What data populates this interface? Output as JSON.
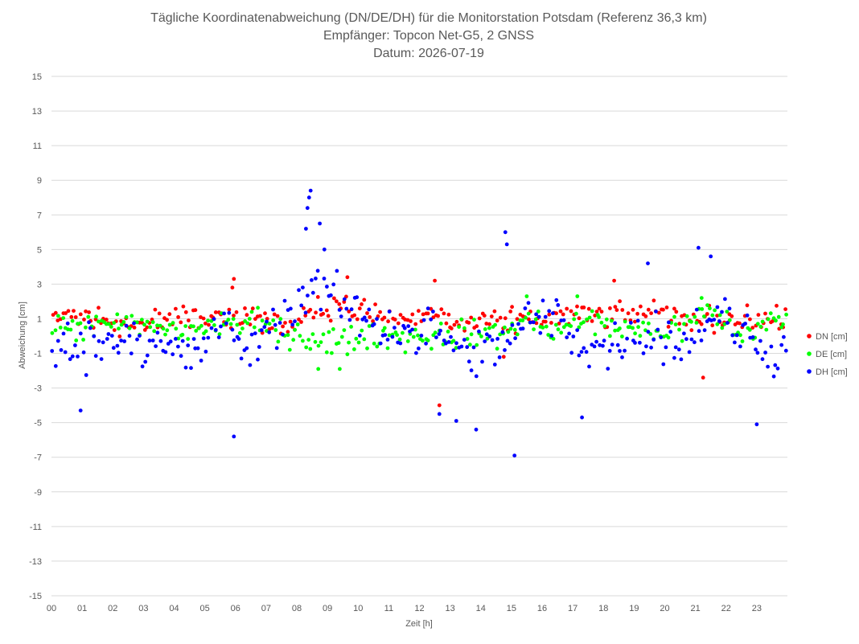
{
  "chart_data": {
    "type": "scatter",
    "title_lines": [
      "Tägliche Koordinatenabweichung (DN/DE/DH) für die Monitorstation Potsdam (Referenz 36,3 km)",
      "Empfänger: Topcon Net-G5, 2 GNSS",
      "Datum: 2026-07-19"
    ],
    "xlabel": "Zeit [h]",
    "ylabel": "Abweichung [cm]",
    "xlim": [
      0,
      24
    ],
    "ylim": [
      -15,
      15
    ],
    "xticks": [
      "00",
      "01",
      "02",
      "03",
      "04",
      "05",
      "06",
      "07",
      "08",
      "09",
      "10",
      "11",
      "12",
      "13",
      "14",
      "15",
      "16",
      "17",
      "18",
      "19",
      "20",
      "21",
      "22",
      "23"
    ],
    "yticks": [
      15,
      13,
      11,
      9,
      7,
      5,
      3,
      1,
      -1,
      -3,
      -5,
      -7,
      -9,
      -11,
      -13,
      -15
    ],
    "grid": "horizontal",
    "legend_position": "right",
    "samples_per_hour": 12,
    "series": [
      {
        "name": "DN [cm]",
        "color": "#ff0000",
        "hourly_mean": [
          1.1,
          0.9,
          0.6,
          1.0,
          1.2,
          0.9,
          1.2,
          0.6,
          1.5,
          1.7,
          1.3,
          0.9,
          1.3,
          0.6,
          0.7,
          1.0,
          1.1,
          1.2,
          1.1,
          1.5,
          1.0,
          1.0,
          1.0,
          0.9
        ],
        "spread": 0.6,
        "outliers": [
          [
            5.95,
            3.3
          ],
          [
            5.9,
            2.8
          ],
          [
            9.65,
            3.4
          ],
          [
            12.5,
            3.2
          ],
          [
            13.0,
            0.5
          ],
          [
            12.65,
            -4.0
          ],
          [
            14.75,
            -1.2
          ],
          [
            18.35,
            3.2
          ],
          [
            21.25,
            -2.4
          ]
        ]
      },
      {
        "name": "DE [cm]",
        "color": "#00ff00",
        "hourly_mean": [
          0.5,
          0.5,
          0.6,
          0.5,
          0.3,
          0.7,
          0.8,
          0.3,
          -0.2,
          -0.4,
          0.1,
          -0.1,
          0.0,
          0.1,
          0.1,
          0.9,
          0.3,
          0.9,
          0.4,
          0.3,
          0.5,
          1.5,
          0.1,
          0.8
        ],
        "spread": 0.7,
        "outliers": [
          [
            8.7,
            -1.9
          ],
          [
            9.4,
            -1.9
          ],
          [
            15.5,
            2.3
          ],
          [
            17.15,
            2.3
          ],
          [
            21.2,
            2.2
          ]
        ]
      },
      {
        "name": "DH [cm]",
        "color": "#0000ff",
        "hourly_mean": [
          -0.6,
          -0.4,
          0.0,
          -0.3,
          -1.4,
          0.6,
          -0.9,
          0.9,
          2.9,
          1.9,
          0.8,
          0.3,
          0.3,
          -1.2,
          -0.9,
          0.9,
          1.0,
          -0.8,
          -0.5,
          0.6,
          -0.6,
          1.2,
          0.1,
          -1.0
        ],
        "spread": 1.2,
        "outliers": [
          [
            0.95,
            -4.3
          ],
          [
            5.95,
            -5.8
          ],
          [
            8.3,
            6.2
          ],
          [
            8.35,
            7.4
          ],
          [
            8.4,
            8.0
          ],
          [
            8.45,
            8.4
          ],
          [
            8.75,
            6.5
          ],
          [
            8.9,
            5.0
          ],
          [
            12.65,
            -4.5
          ],
          [
            13.2,
            -4.9
          ],
          [
            13.85,
            -5.4
          ],
          [
            14.8,
            6.0
          ],
          [
            14.85,
            5.3
          ],
          [
            15.1,
            -6.9
          ],
          [
            17.3,
            -4.7
          ],
          [
            19.45,
            4.2
          ],
          [
            21.1,
            5.1
          ],
          [
            21.5,
            4.6
          ],
          [
            23.0,
            -5.1
          ]
        ]
      }
    ]
  }
}
